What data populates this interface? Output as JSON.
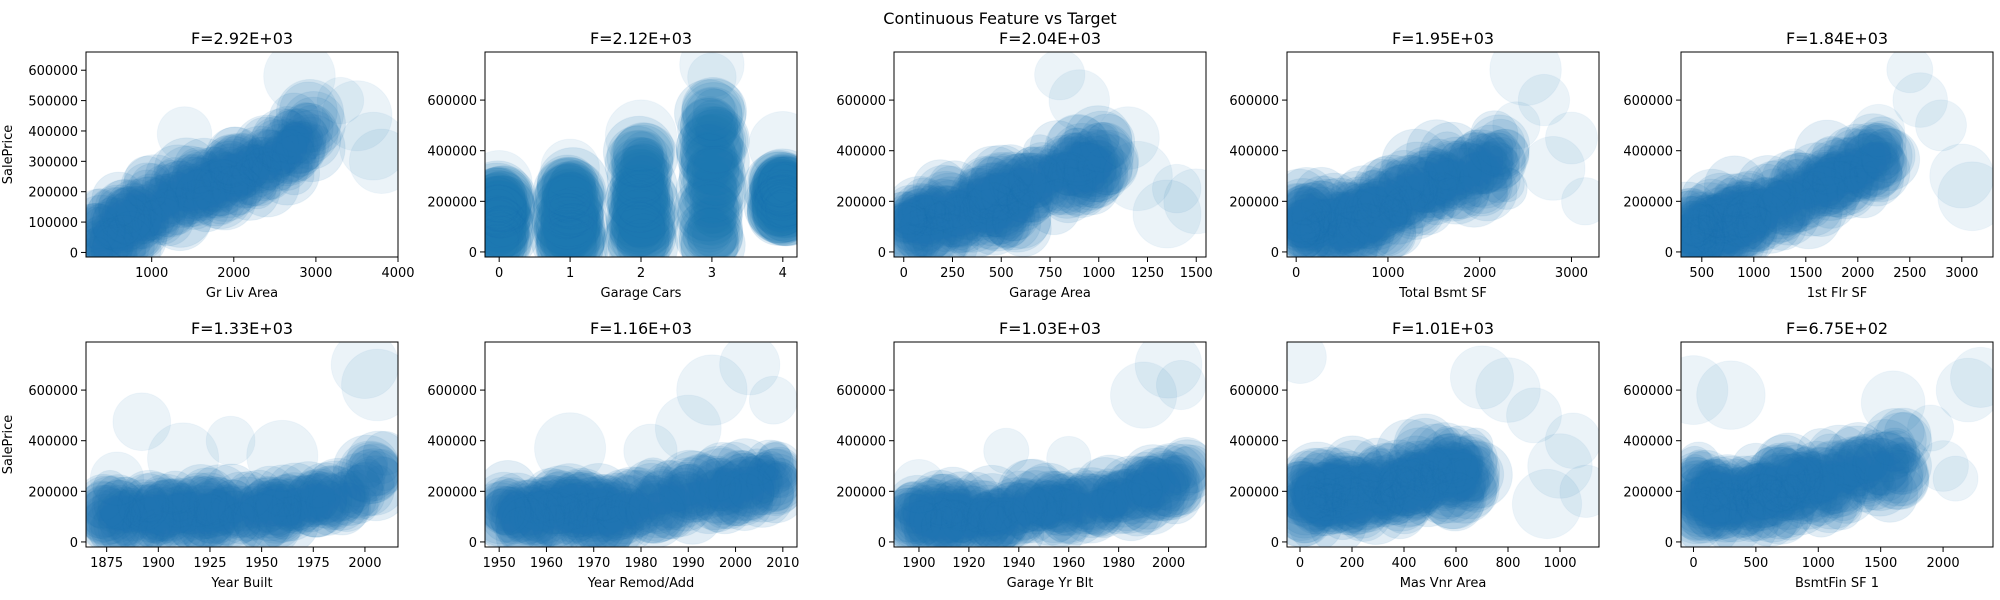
{
  "figure": {
    "suptitle": "Continuous Feature vs Target"
  },
  "style": {
    "marker_color": "#1f77b4",
    "axis_color": "#000000"
  },
  "chart_data": [
    {
      "type": "scatter",
      "title": "F=2.92E+03",
      "xlabel": "Gr Liv Area",
      "ylabel": "SalePrice",
      "xlim": [
        200,
        4000
      ],
      "ylim": [
        -15000,
        660000
      ],
      "xticks": [
        1000,
        2000,
        3000,
        4000
      ],
      "yticks": [
        0,
        100000,
        200000,
        300000,
        400000,
        500000,
        600000
      ],
      "trend": {
        "x": [
          300,
          1000,
          2000,
          2500,
          3000
        ],
        "y": [
          40000,
          130000,
          260000,
          330000,
          390000
        ]
      },
      "spread": 130000,
      "outliers": [
        [
          3500,
          450000
        ],
        [
          3700,
          350000
        ],
        [
          3800,
          300000
        ],
        [
          3300,
          500000
        ],
        [
          2800,
          580000
        ],
        [
          1400,
          390000
        ]
      ]
    },
    {
      "type": "scatter",
      "title": "F=2.12E+03",
      "xlabel": "Garage Cars",
      "ylabel": "",
      "xlim": [
        -0.2,
        4.2
      ],
      "ylim": [
        -20000,
        790000
      ],
      "xticks": [
        0,
        1,
        2,
        3,
        4
      ],
      "yticks": [
        0,
        200000,
        400000,
        600000
      ],
      "columns": [
        {
          "x": 0,
          "ymin": 20000,
          "ymax": 230000
        },
        {
          "x": 1,
          "ymin": 20000,
          "ymax": 280000
        },
        {
          "x": 2,
          "ymin": 20000,
          "ymax": 400000
        },
        {
          "x": 3,
          "ymin": 20000,
          "ymax": 570000
        },
        {
          "x": 4,
          "ymin": 150000,
          "ymax": 280000
        }
      ],
      "outliers": [
        [
          3,
          740000
        ],
        [
          3,
          690000
        ],
        [
          4,
          420000
        ],
        [
          2,
          460000
        ],
        [
          1,
          330000
        ],
        [
          0,
          270000
        ]
      ]
    },
    {
      "type": "scatter",
      "title": "F=2.04E+03",
      "xlabel": "Garage Area",
      "ylabel": "",
      "xlim": [
        -50,
        1550
      ],
      "ylim": [
        -20000,
        790000
      ],
      "xticks": [
        0,
        250,
        500,
        750,
        1000,
        1250,
        1500
      ],
      "yticks": [
        0,
        200000,
        400000,
        600000
      ],
      "trend": {
        "x": [
          0,
          250,
          500,
          750,
          1000,
          1050
        ],
        "y": [
          110000,
          140000,
          190000,
          270000,
          360000,
          380000
        ]
      },
      "spread": 160000,
      "outliers": [
        [
          1200,
          300000
        ],
        [
          1350,
          150000
        ],
        [
          1400,
          250000
        ],
        [
          900,
          600000
        ],
        [
          800,
          700000
        ],
        [
          1150,
          450000
        ],
        [
          1500,
          200000
        ]
      ]
    },
    {
      "type": "scatter",
      "title": "F=1.95E+03",
      "xlabel": "Total Bsmt SF",
      "ylabel": "",
      "xlim": [
        -100,
        3300
      ],
      "ylim": [
        -20000,
        790000
      ],
      "xticks": [
        0,
        1000,
        2000,
        3000
      ],
      "yticks": [
        0,
        200000,
        400000,
        600000
      ],
      "trend": {
        "x": [
          0,
          500,
          1000,
          1500,
          2000,
          2300
        ],
        "y": [
          110000,
          120000,
          170000,
          260000,
          340000,
          380000
        ]
      },
      "spread": 150000,
      "outliers": [
        [
          2700,
          600000
        ],
        [
          2500,
          720000
        ],
        [
          3000,
          450000
        ],
        [
          3150,
          200000
        ],
        [
          2800,
          330000
        ],
        [
          2400,
          500000
        ]
      ]
    },
    {
      "type": "scatter",
      "title": "F=1.84E+03",
      "xlabel": "1st Flr SF",
      "ylabel": "",
      "xlim": [
        300,
        3300
      ],
      "ylim": [
        -20000,
        790000
      ],
      "xticks": [
        500,
        1000,
        1500,
        2000,
        2500,
        3000
      ],
      "yticks": [
        0,
        200000,
        400000,
        600000
      ],
      "trend": {
        "x": [
          350,
          1000,
          1500,
          2000,
          2300
        ],
        "y": [
          60000,
          150000,
          240000,
          330000,
          380000
        ]
      },
      "spread": 140000,
      "outliers": [
        [
          2600,
          600000
        ],
        [
          2800,
          500000
        ],
        [
          3000,
          300000
        ],
        [
          3100,
          220000
        ],
        [
          2500,
          720000
        ],
        [
          2200,
          480000
        ]
      ]
    },
    {
      "type": "scatter",
      "title": "F=1.33E+03",
      "xlabel": "Year Built",
      "ylabel": "SalePrice",
      "xlim": [
        1865,
        2016
      ],
      "ylim": [
        -20000,
        790000
      ],
      "xticks": [
        1875,
        1900,
        1925,
        1950,
        1975,
        2000
      ],
      "yticks": [
        0,
        200000,
        400000,
        600000
      ],
      "trend": {
        "x": [
          1872,
          1900,
          1925,
          1950,
          1975,
          1995,
          2010
        ],
        "y": [
          120000,
          110000,
          120000,
          130000,
          150000,
          200000,
          280000
        ]
      },
      "spread": 110000,
      "outliers": [
        [
          1892,
          475000
        ],
        [
          1935,
          400000
        ],
        [
          1960,
          340000
        ],
        [
          2000,
          700000
        ],
        [
          2006,
          620000
        ],
        [
          1880,
          250000
        ],
        [
          1912,
          330000
        ]
      ]
    },
    {
      "type": "scatter",
      "title": "F=1.16E+03",
      "xlabel": "Year Remod/Add",
      "ylabel": "",
      "xlim": [
        1947,
        2013
      ],
      "ylim": [
        -20000,
        790000
      ],
      "xticks": [
        1950,
        1960,
        1970,
        1980,
        1990,
        2000,
        2010
      ],
      "yticks": [
        0,
        200000,
        400000,
        600000
      ],
      "trend": {
        "x": [
          1950,
          1960,
          1970,
          1980,
          1990,
          2000,
          2010
        ],
        "y": [
          120000,
          130000,
          135000,
          145000,
          170000,
          220000,
          260000
        ]
      },
      "spread": 120000,
      "outliers": [
        [
          1965,
          370000
        ],
        [
          1990,
          450000
        ],
        [
          1995,
          600000
        ],
        [
          2003,
          700000
        ],
        [
          2008,
          560000
        ],
        [
          1982,
          360000
        ]
      ]
    },
    {
      "type": "scatter",
      "title": "F=1.03E+03",
      "xlabel": "Garage Yr Blt",
      "ylabel": "",
      "xlim": [
        1890,
        2015
      ],
      "ylim": [
        -20000,
        790000
      ],
      "xticks": [
        1900,
        1920,
        1940,
        1960,
        1980,
        2000
      ],
      "yticks": [
        0,
        200000,
        400000,
        600000
      ],
      "trend": {
        "x": [
          1895,
          1920,
          1940,
          1960,
          1980,
          1995,
          2010
        ],
        "y": [
          90000,
          110000,
          125000,
          140000,
          170000,
          220000,
          270000
        ]
      },
      "spread": 110000,
      "outliers": [
        [
          1935,
          360000
        ],
        [
          1990,
          580000
        ],
        [
          2000,
          700000
        ],
        [
          2005,
          620000
        ],
        [
          1900,
          220000
        ],
        [
          1960,
          330000
        ]
      ]
    },
    {
      "type": "scatter",
      "title": "F=1.01E+03",
      "xlabel": "Mas Vnr Area",
      "ylabel": "",
      "xlim": [
        -50,
        1150
      ],
      "ylim": [
        -20000,
        790000
      ],
      "xticks": [
        0,
        200,
        400,
        600,
        800,
        1000
      ],
      "yticks": [
        0,
        200000,
        400000,
        600000
      ],
      "trend": {
        "x": [
          0,
          200,
          400,
          600,
          700
        ],
        "y": [
          170000,
          200000,
          230000,
          270000,
          290000
        ]
      },
      "spread": 150000,
      "outliers": [
        [
          0,
          730000
        ],
        [
          900,
          500000
        ],
        [
          1000,
          300000
        ],
        [
          1100,
          200000
        ],
        [
          1050,
          400000
        ],
        [
          800,
          600000
        ],
        [
          950,
          150000
        ],
        [
          700,
          650000
        ]
      ]
    },
    {
      "type": "scatter",
      "title": "F=6.75E+02",
      "xlabel": "BsmtFin SF 1",
      "ylabel": "",
      "xlim": [
        -100,
        2400
      ],
      "ylim": [
        -20000,
        790000
      ],
      "xticks": [
        0,
        500,
        1000,
        1500,
        2000
      ],
      "yticks": [
        0,
        200000,
        400000,
        600000
      ],
      "trend": {
        "x": [
          0,
          500,
          1000,
          1500,
          1700
        ],
        "y": [
          170000,
          180000,
          230000,
          290000,
          320000
        ]
      },
      "spread": 150000,
      "outliers": [
        [
          0,
          600000
        ],
        [
          300,
          580000
        ],
        [
          2200,
          600000
        ],
        [
          2000,
          300000
        ],
        [
          1900,
          450000
        ],
        [
          2300,
          650000
        ],
        [
          1600,
          550000
        ],
        [
          2100,
          250000
        ]
      ]
    }
  ]
}
